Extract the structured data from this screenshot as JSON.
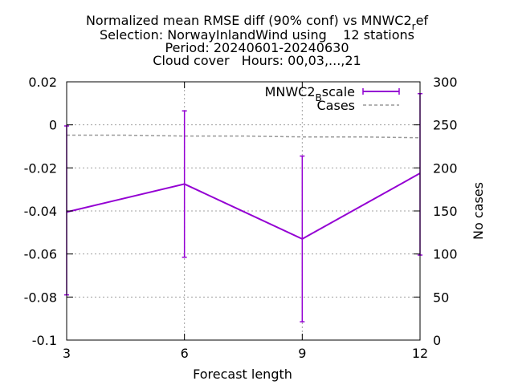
{
  "chart_data": {
    "type": "line",
    "title_lines": [
      "Normalized mean RMSE diff (90% conf) vs MNWC2_ref",
      "Selection: NorwayInlandWind using    12 stations",
      "Period: 20240601-20240630",
      "Cloud cover   Hours: 00,03,...,21"
    ],
    "xlabel": "Forecast length",
    "ylabel": "",
    "y2label": "No cases",
    "x": [
      3,
      6,
      9,
      12
    ],
    "xlim": [
      3,
      12
    ],
    "ylim": [
      -0.1,
      0.02
    ],
    "y2lim": [
      0,
      300
    ],
    "x_ticks": [
      3,
      6,
      9,
      12
    ],
    "y_ticks": [
      0.02,
      0,
      -0.02,
      -0.04,
      -0.06,
      -0.08,
      -0.1
    ],
    "y_tick_labels": [
      "0.02",
      "0",
      "-0.02",
      "-0.04",
      "-0.06",
      "-0.08",
      "-0.1"
    ],
    "y2_ticks": [
      300,
      250,
      200,
      150,
      100,
      50,
      0
    ],
    "grid": true,
    "legend_position": "top-right",
    "series": [
      {
        "name": "MNWC2_Bscale",
        "axis": "left",
        "color": "#9400d3",
        "values": [
          -0.0405,
          -0.0275,
          -0.053,
          -0.0225
        ],
        "error_low": [
          -0.079,
          -0.0615,
          -0.0915,
          -0.0605
        ],
        "error_high": [
          -0.0005,
          0.0065,
          -0.0145,
          0.0145
        ]
      },
      {
        "name": "Cases",
        "axis": "right",
        "color": "#999999",
        "style": "dashed",
        "x": [
          3,
          4.5,
          6,
          7.5,
          9,
          10.5,
          12
        ],
        "values": [
          238,
          238,
          237,
          237,
          236,
          236,
          235
        ]
      }
    ]
  }
}
